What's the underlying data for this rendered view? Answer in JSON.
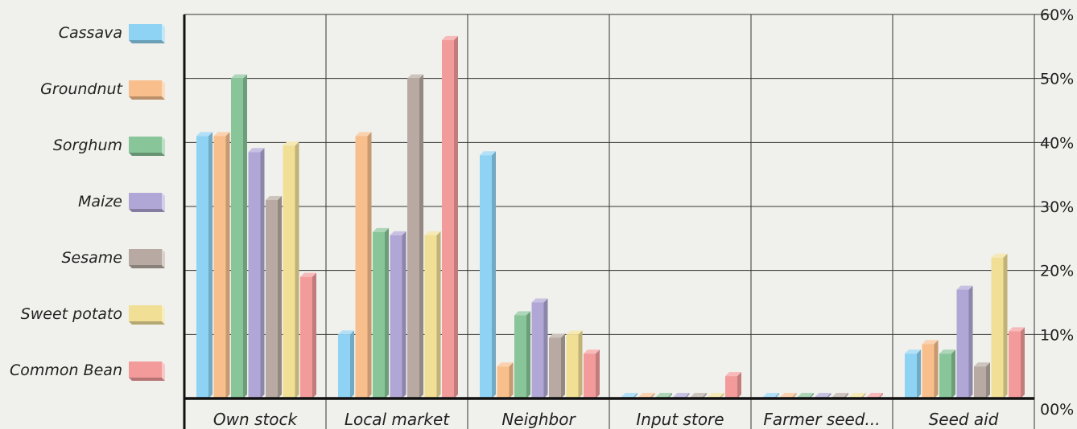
{
  "chart_data": {
    "type": "bar",
    "categories": [
      "Own stock",
      "Local market",
      "Neighbor",
      "Input store",
      "Farmer seed...",
      "Seed aid"
    ],
    "series": [
      {
        "name": "Cassava",
        "color": "#8fd3f4",
        "values": [
          41,
          10,
          38,
          0,
          0,
          7
        ]
      },
      {
        "name": "Groundnut",
        "color": "#f8bf8c",
        "values": [
          41,
          41,
          5,
          0,
          0,
          8.5
        ]
      },
      {
        "name": "Sorghum",
        "color": "#88c598",
        "values": [
          50,
          26,
          13,
          0,
          0,
          7
        ]
      },
      {
        "name": "Maize",
        "color": "#b0a7d6",
        "values": [
          38.5,
          25.5,
          15,
          0,
          0,
          17
        ]
      },
      {
        "name": "Sesame",
        "color": "#b8aaa2",
        "values": [
          31,
          50,
          9.5,
          0,
          0,
          5
        ]
      },
      {
        "name": "Sweet potato",
        "color": "#f1df96",
        "values": [
          39.5,
          25.5,
          10,
          0,
          0,
          22
        ]
      },
      {
        "name": "Common Bean",
        "color": "#f39b9b",
        "values": [
          19,
          56,
          7,
          3.5,
          0,
          10.5
        ]
      }
    ],
    "y_ticks": [
      "00%",
      "10%",
      "20%",
      "30%",
      "40%",
      "50%",
      "60%"
    ],
    "ylim": [
      0,
      60
    ],
    "y_axis_side": "right",
    "legend_position": "left",
    "grid": true
  }
}
